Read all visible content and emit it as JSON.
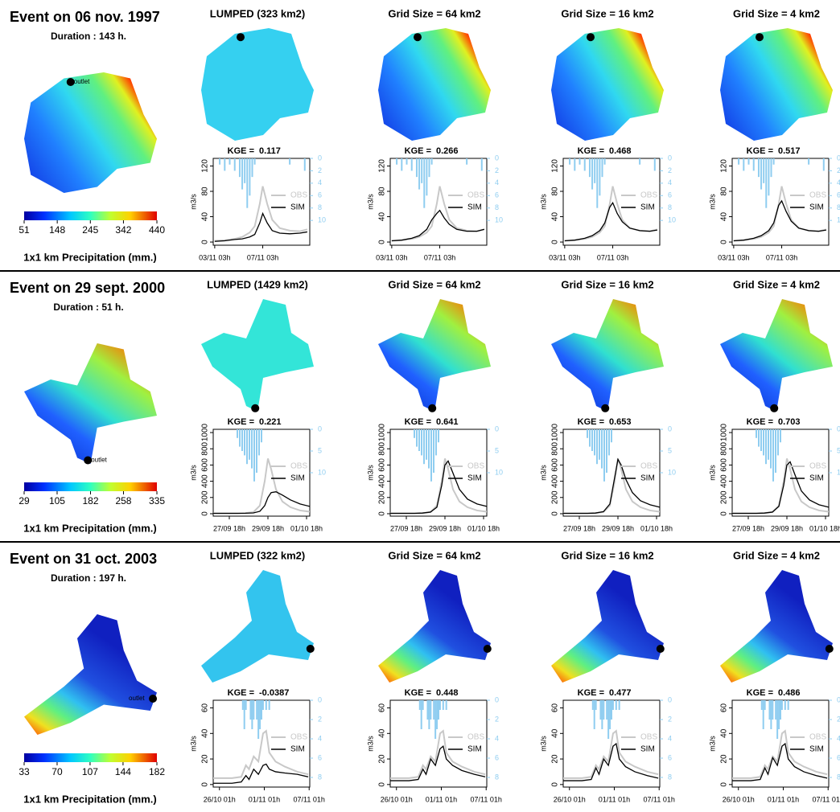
{
  "y_label": "m3/s",
  "kge_label": "KGE =",
  "legend": {
    "obs": "OBS",
    "sim": "SIM"
  },
  "colors": {
    "obs": "#c8c8c8",
    "sim": "#000000",
    "rain": "#8fcdf0"
  },
  "events": [
    {
      "title": "Event on 06 nov. 1997",
      "duration": "Duration : 143 h.",
      "outlet_label": "outlet",
      "colorbar": {
        "ticks": [
          51,
          148,
          245,
          342,
          440
        ],
        "label": "1x1 km Precipitation (mm.)"
      },
      "hydrograph": {
        "xlim": [
          -3,
          190
        ],
        "xticks": [
          {
            "value": 0,
            "label": "03/11 03h"
          },
          {
            "value": 96,
            "label": "07/11 03h"
          }
        ],
        "ylim": [
          -5,
          132
        ],
        "yticks": [
          0,
          40,
          80,
          120
        ],
        "y2lim": [
          0,
          14
        ],
        "y2ticks": [
          0,
          2,
          4,
          6,
          8,
          10
        ],
        "y2_inverted": true,
        "t": [
          0,
          20,
          40,
          55,
          70,
          80,
          90,
          96,
          105,
          115,
          130,
          150,
          170,
          185
        ],
        "obs": [
          2,
          3,
          5,
          8,
          15,
          25,
          60,
          88,
          60,
          35,
          22,
          18,
          17,
          20
        ],
        "rain_t": [
          10,
          20,
          30,
          40,
          50,
          55,
          60,
          65,
          70,
          75,
          80,
          150,
          180
        ],
        "rain": [
          1,
          2,
          1,
          2,
          3,
          5,
          4,
          8,
          6,
          3,
          1,
          1,
          2
        ]
      },
      "panels": [
        {
          "title": "LUMPED (323 km2)",
          "kge": 0.117,
          "sim": [
            1,
            2,
            4,
            5,
            8,
            12,
            30,
            45,
            30,
            18,
            14,
            13,
            14,
            16
          ]
        },
        {
          "title": "Grid Size = 64 km2",
          "kge": 0.266,
          "sim": [
            2,
            3,
            6,
            10,
            20,
            35,
            45,
            50,
            38,
            28,
            20,
            17,
            17,
            20
          ]
        },
        {
          "title": "Grid Size = 16 km2",
          "kge": 0.468,
          "sim": [
            2,
            3,
            6,
            10,
            18,
            30,
            55,
            62,
            45,
            32,
            22,
            18,
            17,
            19
          ]
        },
        {
          "title": "Grid Size = 4 km2",
          "kge": 0.517,
          "sim": [
            2,
            3,
            6,
            10,
            18,
            30,
            58,
            65,
            48,
            33,
            22,
            18,
            17,
            19
          ]
        }
      ]
    },
    {
      "title": "Event on 29 sept. 2000",
      "duration": "Duration : 51 h.",
      "outlet_label": "outlet",
      "colorbar": {
        "ticks": [
          29,
          105,
          182,
          258,
          335
        ],
        "label": "1x1 km Precipitation (mm.)"
      },
      "hydrograph": {
        "xlim": [
          -20,
          100
        ],
        "xticks": [
          {
            "value": 0,
            "label": "27/09 18h"
          },
          {
            "value": 48,
            "label": "29/09 18h"
          },
          {
            "value": 96,
            "label": "01/10 18h"
          }
        ],
        "ylim": [
          -30,
          1040
        ],
        "yticks": [
          0,
          200,
          400,
          600,
          800,
          1000
        ],
        "y2lim": [
          0,
          20
        ],
        "y2ticks": [
          0,
          5,
          10
        ],
        "y2_inverted": true,
        "t": [
          -20,
          -10,
          0,
          10,
          20,
          30,
          38,
          44,
          48,
          52,
          58,
          66,
          76,
          88,
          100
        ],
        "obs": [
          5,
          5,
          5,
          5,
          8,
          20,
          100,
          400,
          680,
          550,
          300,
          150,
          80,
          40,
          25
        ],
        "rain_t": [
          10,
          13,
          16,
          19,
          22,
          25,
          28,
          31,
          34,
          37,
          40
        ],
        "rain": [
          2,
          4,
          5,
          6,
          8,
          7,
          9,
          12,
          10,
          6,
          3
        ]
      },
      "panels": [
        {
          "title": "LUMPED (1429 km2)",
          "kge": 0.221,
          "sim": [
            5,
            5,
            5,
            5,
            6,
            10,
            30,
            100,
            200,
            260,
            270,
            230,
            170,
            120,
            90
          ]
        },
        {
          "title": "Grid Size = 64 km2",
          "kge": 0.641,
          "sim": [
            5,
            5,
            5,
            5,
            8,
            20,
            80,
            350,
            600,
            650,
            500,
            300,
            180,
            120,
            90
          ]
        },
        {
          "title": "Grid Size = 16 km2",
          "kge": 0.653,
          "sim": [
            5,
            5,
            5,
            5,
            8,
            25,
            120,
            450,
            670,
            600,
            420,
            260,
            160,
            110,
            80
          ]
        },
        {
          "title": "Grid Size = 4 km2",
          "kge": 0.703,
          "sim": [
            5,
            5,
            5,
            5,
            8,
            20,
            90,
            350,
            600,
            640,
            480,
            280,
            170,
            110,
            80
          ]
        }
      ]
    },
    {
      "title": "Event on 31 oct. 2003",
      "duration": "Duration : 197 h.",
      "outlet_label": "outlet",
      "colorbar": {
        "ticks": [
          33,
          70,
          107,
          144,
          182
        ],
        "label": "1x1 km Precipitation (mm.)"
      },
      "hydrograph": {
        "xlim": [
          -20,
          290
        ],
        "xticks": [
          {
            "value": 0,
            "label": "26/10 01h"
          },
          {
            "value": 144,
            "label": "01/11 01h"
          },
          {
            "value": 288,
            "label": "07/11 01h"
          }
        ],
        "ylim": [
          -2,
          66
        ],
        "yticks": [
          0,
          20,
          40,
          60
        ],
        "y2lim": [
          0,
          9
        ],
        "y2ticks": [
          0,
          2,
          4,
          6,
          8
        ],
        "y2_inverted": true,
        "t": [
          -20,
          0,
          40,
          70,
          85,
          95,
          110,
          125,
          140,
          150,
          160,
          180,
          210,
          250,
          285
        ],
        "obs": [
          5,
          5,
          5,
          6,
          15,
          12,
          22,
          18,
          40,
          42,
          25,
          18,
          14,
          10,
          8
        ],
        "rain_t": [
          75,
          80,
          85,
          100,
          105,
          110,
          120,
          125,
          130,
          135,
          140,
          150,
          160
        ],
        "rain": [
          1,
          3,
          1,
          2,
          3,
          2,
          2,
          4,
          3,
          2,
          1,
          1,
          1
        ]
      },
      "panels": [
        {
          "title": "LUMPED (322 km2)",
          "kge": -0.0387,
          "sim": [
            1,
            1,
            1,
            2,
            7,
            4,
            12,
            8,
            15,
            16,
            12,
            10,
            9,
            8,
            6
          ]
        },
        {
          "title": "Grid Size = 64 km2",
          "kge": 0.448,
          "sim": [
            3,
            3,
            3,
            4,
            12,
            8,
            20,
            15,
            28,
            30,
            20,
            15,
            11,
            8,
            6
          ]
        },
        {
          "title": "Grid Size = 16 km2",
          "kge": 0.477,
          "sim": [
            3,
            3,
            3,
            4,
            13,
            8,
            20,
            15,
            30,
            32,
            20,
            14,
            10,
            7,
            5
          ]
        },
        {
          "title": "Grid Size = 4 km2",
          "kge": 0.486,
          "sim": [
            3,
            3,
            3,
            4,
            13,
            8,
            21,
            15,
            30,
            32,
            20,
            14,
            10,
            7,
            5
          ]
        }
      ]
    }
  ]
}
